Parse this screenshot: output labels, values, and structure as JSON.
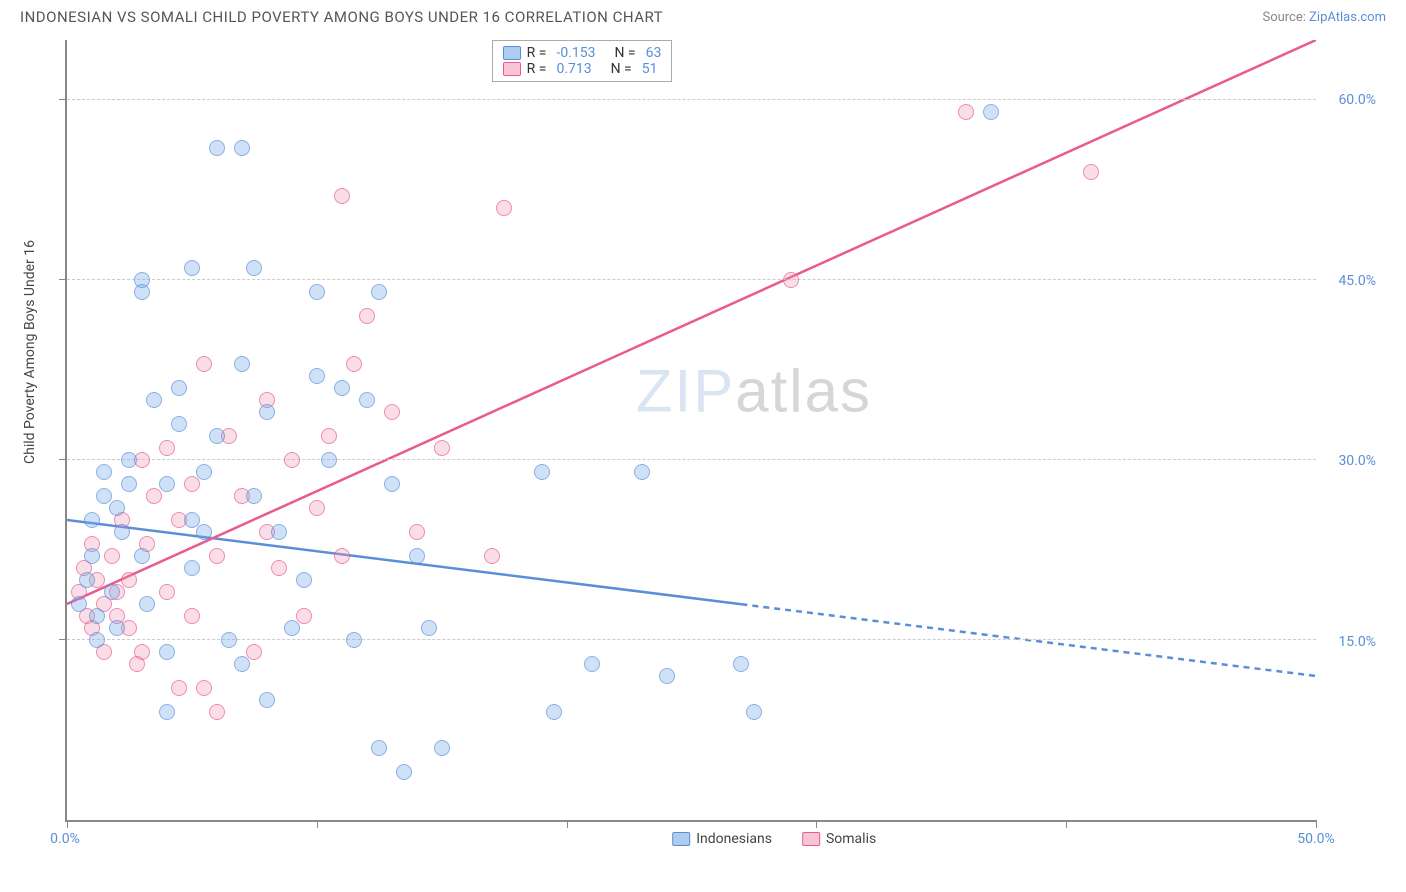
{
  "header": {
    "title": "INDONESIAN VS SOMALI CHILD POVERTY AMONG BOYS UNDER 16 CORRELATION CHART",
    "source_prefix": "Source: ",
    "source_link": "ZipAtlas.com"
  },
  "chart": {
    "type": "scatter",
    "y_axis_title": "Child Poverty Among Boys Under 16",
    "xlim": [
      0,
      50
    ],
    "ylim": [
      0,
      65
    ],
    "x_ticks": [
      0,
      10,
      20,
      30,
      40,
      50
    ],
    "x_tick_labels": {
      "0": "0.0%",
      "50": "50.0%"
    },
    "y_gridlines": [
      15,
      30,
      45,
      60
    ],
    "y_tick_labels": {
      "15": "15.0%",
      "30": "30.0%",
      "45": "45.0%",
      "60": "60.0%"
    },
    "colors": {
      "blue_fill": "rgba(120,170,230,0.5)",
      "blue_stroke": "#5a8fd8",
      "pink_fill": "rgba(240,150,180,0.45)",
      "pink_stroke": "#e85a90",
      "grid": "#cccccc",
      "axis": "#888888",
      "text": "#444444",
      "link": "#5a8fd8",
      "background": "#ffffff"
    },
    "series": {
      "blue": {
        "label": "Indonesians",
        "R": "-0.153",
        "N": "63",
        "trend": {
          "x1": 0,
          "y1": 25,
          "x2": 50,
          "y2": 12,
          "solid_until_x": 27
        },
        "points": [
          [
            0.5,
            18
          ],
          [
            0.8,
            20
          ],
          [
            1,
            22
          ],
          [
            1,
            25
          ],
          [
            1.2,
            17
          ],
          [
            1.2,
            15
          ],
          [
            1.5,
            27
          ],
          [
            1.5,
            29
          ],
          [
            1.8,
            19
          ],
          [
            2,
            16
          ],
          [
            2,
            26
          ],
          [
            2.2,
            24
          ],
          [
            2.5,
            28
          ],
          [
            2.5,
            30
          ],
          [
            3,
            22
          ],
          [
            3,
            44
          ],
          [
            3.2,
            18
          ],
          [
            3.5,
            35
          ],
          [
            4,
            28
          ],
          [
            4,
            14
          ],
          [
            4,
            9
          ],
          [
            4.5,
            33
          ],
          [
            4.5,
            36
          ],
          [
            5,
            46
          ],
          [
            5,
            21
          ],
          [
            5.5,
            29
          ],
          [
            5.5,
            24
          ],
          [
            6,
            56
          ],
          [
            6,
            32
          ],
          [
            6.5,
            15
          ],
          [
            7,
            38
          ],
          [
            7,
            13
          ],
          [
            7.5,
            46
          ],
          [
            7.5,
            27
          ],
          [
            8,
            34
          ],
          [
            8,
            10
          ],
          [
            8.5,
            24
          ],
          [
            9,
            16
          ],
          [
            9.5,
            20
          ],
          [
            10,
            37
          ],
          [
            10,
            44
          ],
          [
            10.5,
            30
          ],
          [
            11,
            36
          ],
          [
            11.5,
            15
          ],
          [
            12,
            35
          ],
          [
            12.5,
            44
          ],
          [
            12.5,
            6
          ],
          [
            13,
            28
          ],
          [
            13.5,
            4
          ],
          [
            14,
            22
          ],
          [
            14.5,
            16
          ],
          [
            15,
            6
          ],
          [
            19,
            29
          ],
          [
            19.5,
            9
          ],
          [
            21,
            13
          ],
          [
            23,
            29
          ],
          [
            24,
            12
          ],
          [
            27,
            13
          ],
          [
            27.5,
            9
          ],
          [
            37,
            59
          ],
          [
            7,
            56
          ],
          [
            3,
            45
          ],
          [
            5,
            25
          ]
        ]
      },
      "pink": {
        "label": "Somalis",
        "R": "0.713",
        "N": "51",
        "trend": {
          "x1": 0,
          "y1": 18,
          "x2": 50,
          "y2": 65,
          "solid_until_x": 50
        },
        "points": [
          [
            0.5,
            19
          ],
          [
            0.7,
            21
          ],
          [
            0.8,
            17
          ],
          [
            1,
            23
          ],
          [
            1,
            16
          ],
          [
            1.2,
            20
          ],
          [
            1.5,
            18
          ],
          [
            1.5,
            14
          ],
          [
            1.8,
            22
          ],
          [
            2,
            17
          ],
          [
            2,
            19
          ],
          [
            2.2,
            25
          ],
          [
            2.5,
            16
          ],
          [
            2.5,
            20
          ],
          [
            3,
            30
          ],
          [
            3,
            14
          ],
          [
            3.2,
            23
          ],
          [
            3.5,
            27
          ],
          [
            4,
            31
          ],
          [
            4,
            19
          ],
          [
            4.5,
            11
          ],
          [
            4.5,
            25
          ],
          [
            5,
            28
          ],
          [
            5,
            17
          ],
          [
            5.5,
            38
          ],
          [
            6,
            22
          ],
          [
            6,
            9
          ],
          [
            6.5,
            32
          ],
          [
            7,
            27
          ],
          [
            7.5,
            14
          ],
          [
            8,
            24
          ],
          [
            8,
            35
          ],
          [
            8.5,
            21
          ],
          [
            9,
            30
          ],
          [
            9.5,
            17
          ],
          [
            10,
            26
          ],
          [
            10.5,
            32
          ],
          [
            11,
            52
          ],
          [
            11,
            22
          ],
          [
            11.5,
            38
          ],
          [
            12,
            42
          ],
          [
            13,
            34
          ],
          [
            14,
            24
          ],
          [
            15,
            31
          ],
          [
            17,
            22
          ],
          [
            17.5,
            51
          ],
          [
            29,
            45
          ],
          [
            36,
            59
          ],
          [
            41,
            54
          ],
          [
            5.5,
            11
          ],
          [
            2.8,
            13
          ]
        ]
      }
    },
    "legend_box": {
      "r_label": "R =",
      "n_label": "N ="
    },
    "watermark": {
      "part1": "ZIP",
      "part2": "atlas"
    }
  }
}
